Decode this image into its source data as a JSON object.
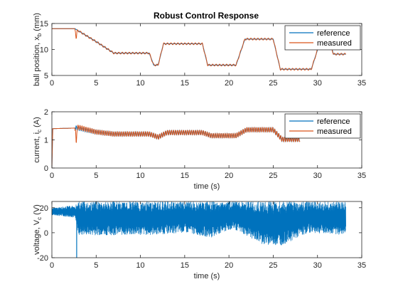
{
  "chart_data": [
    {
      "type": "line",
      "title": "Robust Control Response",
      "xlabel": "",
      "ylabel": "ball position, x_b (mm)",
      "ylabel_main": "ball position, x",
      "ylabel_sub": "b",
      "ylabel_tail": " (mm)",
      "xlim": [
        0,
        35
      ],
      "ylim": [
        5,
        15
      ],
      "xticks": [
        0,
        5,
        10,
        15,
        20,
        25,
        30,
        35
      ],
      "yticks": [
        5,
        10,
        15
      ],
      "grid": false,
      "legend": {
        "position": "top-right",
        "entries": [
          "reference",
          "measured"
        ]
      },
      "series": [
        {
          "name": "reference",
          "color": "#0072BD",
          "points": [
            [
              0,
              14
            ],
            [
              2.6,
              14
            ],
            [
              5,
              11.5
            ],
            [
              7,
              9.3
            ],
            [
              11,
              9.3
            ],
            [
              11.5,
              7.0
            ],
            [
              12,
              7.0
            ],
            [
              12.6,
              11.1
            ],
            [
              17,
              11.1
            ],
            [
              17.6,
              7.0
            ],
            [
              20.8,
              7.0
            ],
            [
              21.8,
              12.0
            ],
            [
              25,
              12.0
            ],
            [
              25.8,
              6.2
            ],
            [
              29.3,
              6.2
            ],
            [
              30.3,
              11.5
            ],
            [
              31.4,
              11.5
            ],
            [
              31.8,
              9.1
            ],
            [
              33.2,
              9.1
            ]
          ]
        },
        {
          "name": "measured",
          "color": "#D95319",
          "points": [
            [
              0,
              14
            ],
            [
              2.6,
              14
            ],
            [
              5,
              11.5
            ],
            [
              7,
              9.3
            ],
            [
              11,
              9.3
            ],
            [
              11.5,
              7.0
            ],
            [
              12,
              7.0
            ],
            [
              12.6,
              11.1
            ],
            [
              17,
              11.1
            ],
            [
              17.6,
              7.0
            ],
            [
              20.8,
              7.0
            ],
            [
              21.8,
              12.0
            ],
            [
              25,
              12.0
            ],
            [
              25.8,
              6.2
            ],
            [
              29.3,
              6.2
            ],
            [
              30.3,
              11.5
            ],
            [
              31.4,
              11.5
            ],
            [
              31.8,
              9.1
            ],
            [
              33.2,
              9.1
            ]
          ]
        }
      ]
    },
    {
      "type": "line",
      "title": "",
      "xlabel": "time (s)",
      "ylabel": "current, i_c (A)",
      "ylabel_main": "current, i",
      "ylabel_sub": "c",
      "ylabel_tail": " (A)",
      "xlim": [
        0,
        35
      ],
      "ylim": [
        0,
        2
      ],
      "xticks": [
        0,
        5,
        10,
        15,
        20,
        25,
        30,
        35
      ],
      "yticks": [
        0,
        1,
        2
      ],
      "grid": false,
      "legend": {
        "position": "top-right",
        "entries": [
          "reference",
          "measured"
        ]
      },
      "series": [
        {
          "name": "reference",
          "color": "#0072BD",
          "points": [
            [
              0,
              0
            ],
            [
              0.1,
              1.4
            ],
            [
              2.6,
              1.42
            ],
            [
              3.0,
              1.42
            ],
            [
              5,
              1.28
            ],
            [
              7,
              1.21
            ],
            [
              11,
              1.21
            ],
            [
              12,
              1.1
            ],
            [
              13,
              1.26
            ],
            [
              17,
              1.26
            ],
            [
              18,
              1.15
            ],
            [
              20.8,
              1.15
            ],
            [
              22,
              1.36
            ],
            [
              25,
              1.36
            ],
            [
              26,
              1.02
            ],
            [
              28,
              1.02
            ]
          ]
        },
        {
          "name": "measured",
          "color": "#D95319",
          "points": [
            [
              0,
              0
            ],
            [
              0.1,
              1.4
            ],
            [
              2.6,
              1.42
            ],
            [
              3.0,
              1.45
            ],
            [
              5,
              1.28
            ],
            [
              7,
              1.21
            ],
            [
              11,
              1.21
            ],
            [
              12,
              1.1
            ],
            [
              13,
              1.26
            ],
            [
              17,
              1.26
            ],
            [
              18,
              1.15
            ],
            [
              20.8,
              1.15
            ],
            [
              22,
              1.36
            ],
            [
              25,
              1.36
            ],
            [
              26,
              1.02
            ],
            [
              28,
              1.02
            ]
          ]
        }
      ]
    },
    {
      "type": "line",
      "title": "",
      "xlabel": "time (s)",
      "ylabel": "voltage, V_c (V)",
      "ylabel_main": "voltage, V",
      "ylabel_sub": "c",
      "ylabel_tail": " (V)",
      "xlim": [
        0,
        35
      ],
      "ylim": [
        -20,
        25
      ],
      "xticks": [
        0,
        5,
        10,
        15,
        20,
        25,
        30,
        35
      ],
      "yticks": [
        -20,
        0,
        20
      ],
      "grid": false,
      "series": [
        {
          "color": "#0072BD",
          "envelope": [
            [
              0,
              14,
              20
            ],
            [
              2.6,
              12,
              22
            ],
            [
              3,
              -2,
              25
            ],
            [
              11,
              -2,
              25
            ],
            [
              15,
              0,
              25
            ],
            [
              18,
              -4,
              25
            ],
            [
              20.5,
              3,
              25
            ],
            [
              24,
              -10,
              25
            ],
            [
              26,
              -10,
              25
            ],
            [
              29,
              0,
              25
            ],
            [
              33.2,
              -2,
              25
            ]
          ]
        }
      ]
    }
  ]
}
